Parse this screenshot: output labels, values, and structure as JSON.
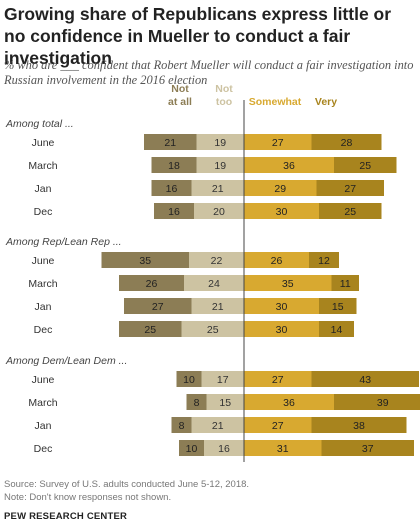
{
  "title": "Growing share of Republicans express little or no confidence in Mueller to conduct a fair investigation",
  "subtitle": "% who are ___ confident that Robert Mueller will conduct a fair investigation into Russian involvement in the 2016 election",
  "source": "Source: Survey of U.S. adults conducted June 5-12, 2018.",
  "note": "Note: Don't know responses not shown.",
  "org": "PEW RESEARCH CENTER",
  "colors": {
    "not_at_all": "#8c7d55",
    "not_too": "#cdc3a2",
    "somewhat": "#d8a930",
    "very": "#a8841e",
    "axis": "#444444"
  },
  "chart_data": {
    "type": "bar",
    "orientation": "horizontal",
    "stacked": "diverging",
    "series_headers": [
      {
        "key": "not_at_all",
        "lines": [
          "Not",
          "at all"
        ]
      },
      {
        "key": "not_too",
        "lines": [
          "Not",
          "too"
        ]
      },
      {
        "key": "somewhat",
        "lines": [
          "Somewhat"
        ]
      },
      {
        "key": "very",
        "lines": [
          "Very"
        ]
      }
    ],
    "groups": [
      {
        "label": "Among total ...",
        "rows": [
          {
            "label": "June",
            "not_at_all": 21,
            "not_too": 19,
            "somewhat": 27,
            "very": 28
          },
          {
            "label": "March",
            "not_at_all": 18,
            "not_too": 19,
            "somewhat": 36,
            "very": 25
          },
          {
            "label": "Jan",
            "not_at_all": 16,
            "not_too": 21,
            "somewhat": 29,
            "very": 27
          },
          {
            "label": "Dec",
            "not_at_all": 16,
            "not_too": 20,
            "somewhat": 30,
            "very": 25
          }
        ]
      },
      {
        "label": "Among Rep/Lean Rep ...",
        "rows": [
          {
            "label": "June",
            "not_at_all": 35,
            "not_too": 22,
            "somewhat": 26,
            "very": 12
          },
          {
            "label": "March",
            "not_at_all": 26,
            "not_too": 24,
            "somewhat": 35,
            "very": 11
          },
          {
            "label": "Jan",
            "not_at_all": 27,
            "not_too": 21,
            "somewhat": 30,
            "very": 15
          },
          {
            "label": "Dec",
            "not_at_all": 25,
            "not_too": 25,
            "somewhat": 30,
            "very": 14
          }
        ]
      },
      {
        "label": "Among Dem/Lean Dem ...",
        "rows": [
          {
            "label": "June",
            "not_at_all": 10,
            "not_too": 17,
            "somewhat": 27,
            "very": 43
          },
          {
            "label": "March",
            "not_at_all": 8,
            "not_too": 15,
            "somewhat": 36,
            "very": 39
          },
          {
            "label": "Jan",
            "not_at_all": 8,
            "not_too": 21,
            "somewhat": 27,
            "very": 38
          },
          {
            "label": "Dec",
            "not_at_all": 10,
            "not_too": 16,
            "somewhat": 31,
            "very": 37
          }
        ]
      }
    ]
  }
}
